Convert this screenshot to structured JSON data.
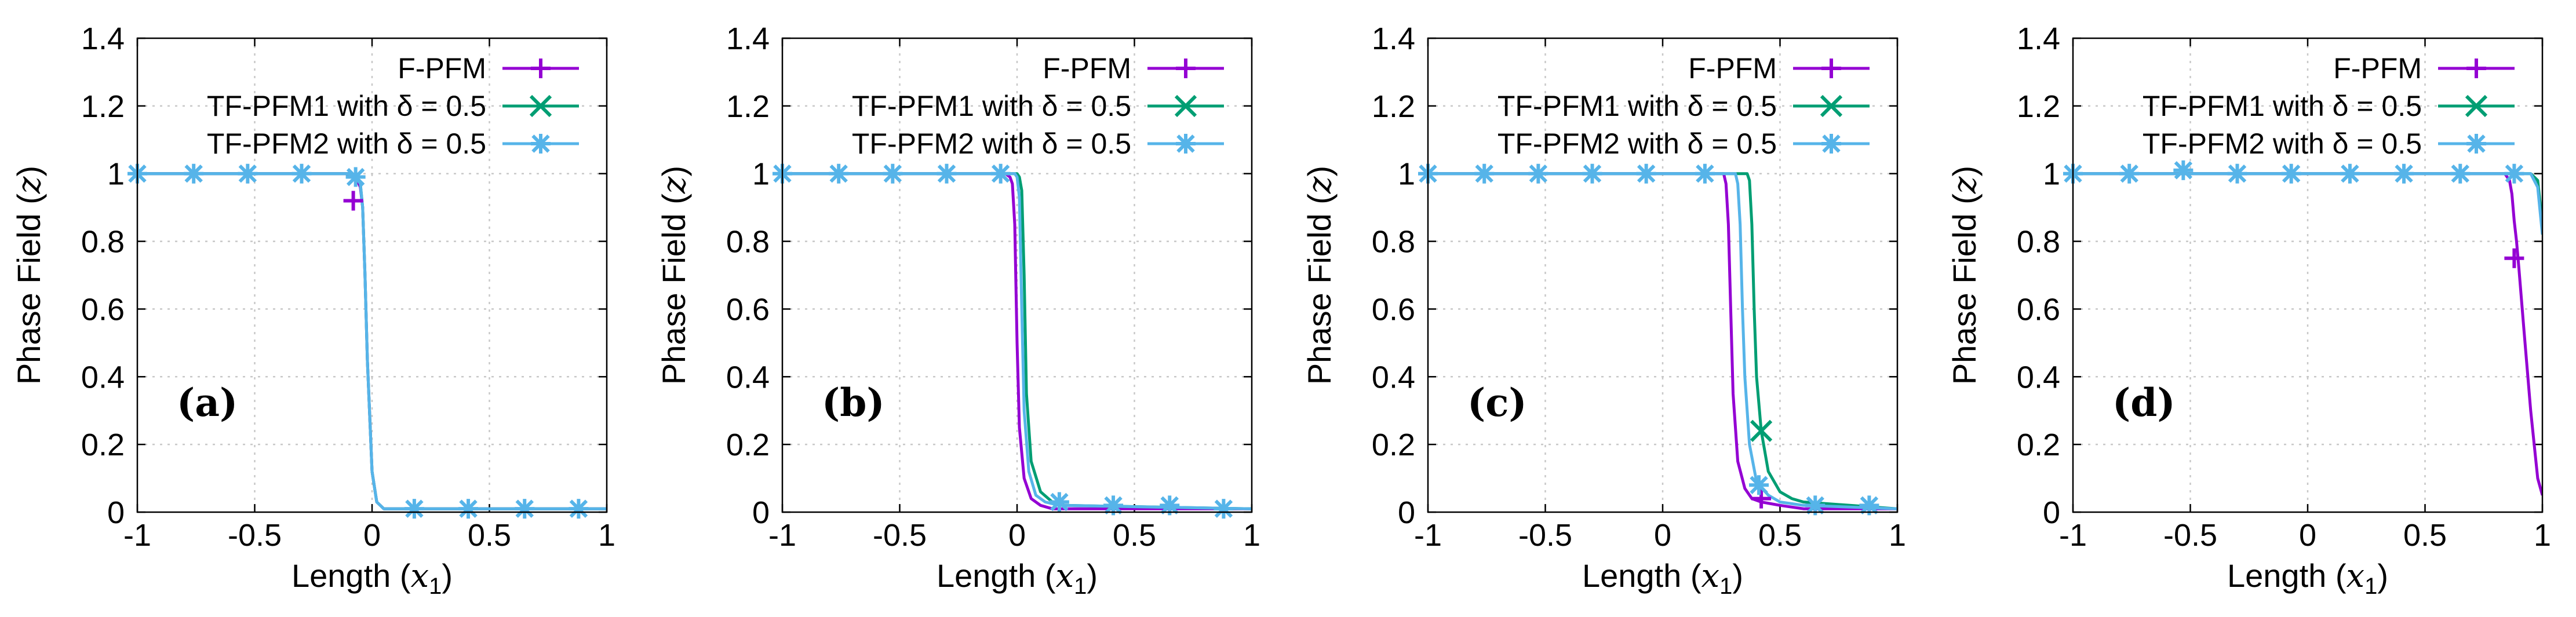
{
  "chart_data": [
    {
      "type": "line",
      "panel_label": "(a)",
      "xlabel_text": "Length (",
      "xlabel_var": "x",
      "xlabel_sub": "1",
      "xlabel_close": ")",
      "ylabel_text": "Phase Field (",
      "ylabel_var": "z",
      "ylabel_close": ")",
      "xlim": [
        -1,
        1
      ],
      "ylim": [
        0,
        1.4
      ],
      "xticks": [
        "-1",
        "-0.5",
        "0",
        "0.5",
        "1"
      ],
      "yticks": [
        "0",
        "0.2",
        "0.4",
        "0.6",
        "0.8",
        "1",
        "1.2",
        "1.4"
      ],
      "grid": true,
      "legend_position": "top-right",
      "series": [
        {
          "name": "F-PFM",
          "color": "#9400d3",
          "marker": "plus",
          "x": [
            -1,
            -0.5,
            -0.1,
            -0.07,
            -0.05,
            -0.04,
            -0.03,
            -0.02,
            0.0,
            0.02,
            0.05,
            1
          ],
          "y": [
            1.0,
            1.0,
            1.0,
            0.99,
            0.96,
            0.9,
            0.7,
            0.45,
            0.12,
            0.03,
            0.01,
            0.01
          ],
          "marker_x": [
            -0.08
          ],
          "marker_y": [
            0.92
          ]
        },
        {
          "name": "TF-PFM1 with δ = 0.5",
          "color": "#009e73",
          "marker": "x",
          "x": [
            -1,
            -0.5,
            -0.1,
            -0.07,
            -0.05,
            -0.04,
            -0.03,
            -0.02,
            0.0,
            0.02,
            0.05,
            1
          ],
          "y": [
            1.0,
            1.0,
            1.0,
            0.99,
            0.97,
            0.9,
            0.7,
            0.45,
            0.12,
            0.03,
            0.01,
            0.01
          ],
          "marker_x": [],
          "marker_y": []
        },
        {
          "name": "TF-PFM2 with δ = 0.5",
          "color": "#56b4e9",
          "marker": "star",
          "x": [
            -1,
            -0.5,
            -0.1,
            -0.07,
            -0.05,
            -0.04,
            -0.03,
            -0.02,
            0.0,
            0.02,
            0.05,
            1
          ],
          "y": [
            1.0,
            1.0,
            1.0,
            0.99,
            0.97,
            0.9,
            0.7,
            0.45,
            0.12,
            0.03,
            0.01,
            0.01
          ],
          "marker_x": [
            -1.0,
            -0.76,
            -0.53,
            -0.3,
            -0.07,
            0.18,
            0.41,
            0.65,
            0.88
          ],
          "marker_y": [
            1.0,
            1.0,
            1.0,
            1.0,
            0.99,
            0.01,
            0.01,
            0.01,
            0.01
          ]
        }
      ]
    },
    {
      "type": "line",
      "panel_label": "(b)",
      "xlabel_text": "Length (",
      "xlabel_var": "x",
      "xlabel_sub": "1",
      "xlabel_close": ")",
      "ylabel_text": "Phase Field (",
      "ylabel_var": "z",
      "ylabel_close": ")",
      "xlim": [
        -1,
        1
      ],
      "ylim": [
        0,
        1.4
      ],
      "xticks": [
        "-1",
        "-0.5",
        "0",
        "0.5",
        "1"
      ],
      "yticks": [
        "0",
        "0.2",
        "0.4",
        "0.6",
        "0.8",
        "1",
        "1.2",
        "1.4"
      ],
      "grid": true,
      "legend_position": "top-right",
      "series": [
        {
          "name": "F-PFM",
          "color": "#9400d3",
          "marker": "plus",
          "x": [
            -1,
            -0.3,
            -0.05,
            -0.03,
            -0.02,
            -0.01,
            0.0,
            0.01,
            0.03,
            0.06,
            0.1,
            0.15,
            1
          ],
          "y": [
            1.0,
            1.0,
            1.0,
            0.99,
            0.97,
            0.85,
            0.5,
            0.25,
            0.1,
            0.04,
            0.02,
            0.01,
            0.01
          ],
          "marker_x": [],
          "marker_y": []
        },
        {
          "name": "TF-PFM1 with δ = 0.5",
          "color": "#009e73",
          "marker": "x",
          "x": [
            -1,
            -0.3,
            0.0,
            0.01,
            0.02,
            0.03,
            0.04,
            0.06,
            0.1,
            0.15,
            0.2,
            1
          ],
          "y": [
            1.0,
            1.0,
            1.0,
            0.99,
            0.95,
            0.7,
            0.35,
            0.15,
            0.06,
            0.03,
            0.02,
            0.01
          ],
          "marker_x": [],
          "marker_y": []
        },
        {
          "name": "TF-PFM2 with δ = 0.5",
          "color": "#56b4e9",
          "marker": "star",
          "x": [
            -1,
            -0.3,
            -0.01,
            0.0,
            0.01,
            0.02,
            0.03,
            0.05,
            0.08,
            0.12,
            0.18,
            1
          ],
          "y": [
            1.0,
            1.0,
            1.0,
            0.99,
            0.93,
            0.6,
            0.3,
            0.12,
            0.05,
            0.03,
            0.02,
            0.01
          ],
          "marker_x": [
            -1.0,
            -0.76,
            -0.53,
            -0.3,
            -0.07,
            0.18,
            0.41,
            0.65,
            0.88
          ],
          "marker_y": [
            1.0,
            1.0,
            1.0,
            1.0,
            1.0,
            0.03,
            0.02,
            0.02,
            0.01
          ]
        }
      ]
    },
    {
      "type": "line",
      "panel_label": "(c)",
      "xlabel_text": "Length (",
      "xlabel_var": "x",
      "xlabel_sub": "1",
      "xlabel_close": ")",
      "ylabel_text": "Phase Field (",
      "ylabel_var": "z",
      "ylabel_close": ")",
      "xlim": [
        -1,
        1
      ],
      "ylim": [
        0,
        1.4
      ],
      "xticks": [
        "-1",
        "-0.5",
        "0",
        "0.5",
        "1"
      ],
      "yticks": [
        "0",
        "0.2",
        "0.4",
        "0.6",
        "0.8",
        "1",
        "1.2",
        "1.4"
      ],
      "grid": true,
      "legend_position": "top-right",
      "series": [
        {
          "name": "F-PFM",
          "color": "#9400d3",
          "marker": "plus",
          "x": [
            -1,
            0.22,
            0.26,
            0.27,
            0.28,
            0.29,
            0.3,
            0.32,
            0.35,
            0.38,
            0.42,
            0.5,
            0.6,
            1
          ],
          "y": [
            1.0,
            1.0,
            1.0,
            0.97,
            0.85,
            0.6,
            0.35,
            0.15,
            0.07,
            0.04,
            0.03,
            0.02,
            0.01,
            0.01
          ],
          "marker_x": [
            0.42
          ],
          "marker_y": [
            0.04
          ]
        },
        {
          "name": "TF-PFM1 with δ = 0.5",
          "color": "#009e73",
          "marker": "x",
          "x": [
            -1,
            0.3,
            0.36,
            0.37,
            0.38,
            0.39,
            0.4,
            0.42,
            0.45,
            0.5,
            0.55,
            0.6,
            1
          ],
          "y": [
            1.0,
            1.0,
            1.0,
            0.98,
            0.85,
            0.6,
            0.4,
            0.24,
            0.12,
            0.06,
            0.04,
            0.03,
            0.01
          ],
          "marker_x": [
            0.42
          ],
          "marker_y": [
            0.24
          ]
        },
        {
          "name": "TF-PFM2 with δ = 0.5",
          "color": "#56b4e9",
          "marker": "star",
          "x": [
            -1,
            0.25,
            0.31,
            0.32,
            0.33,
            0.34,
            0.35,
            0.37,
            0.4,
            0.45,
            0.5,
            0.6,
            1
          ],
          "y": [
            1.0,
            1.0,
            1.0,
            0.97,
            0.85,
            0.6,
            0.4,
            0.2,
            0.09,
            0.05,
            0.03,
            0.02,
            0.01
          ],
          "marker_x": [
            -1.0,
            -0.76,
            -0.53,
            -0.3,
            -0.07,
            0.18,
            0.41,
            0.65,
            0.88
          ],
          "marker_y": [
            1.0,
            1.0,
            1.0,
            1.0,
            1.0,
            1.0,
            0.08,
            0.02,
            0.02
          ]
        }
      ]
    },
    {
      "type": "line",
      "panel_label": "(d)",
      "xlabel_text": "Length (",
      "xlabel_var": "x",
      "xlabel_sub": "1",
      "xlabel_close": ")",
      "ylabel_text": "Phase Field (",
      "ylabel_var": "z",
      "ylabel_close": ")",
      "xlim": [
        -1,
        1
      ],
      "ylim": [
        0,
        1.4
      ],
      "xticks": [
        "-1",
        "-0.5",
        "0",
        "0.5",
        "1"
      ],
      "yticks": [
        "0",
        "0.2",
        "0.4",
        "0.6",
        "0.8",
        "1",
        "1.2",
        "1.4"
      ],
      "grid": true,
      "legend_position": "top-right",
      "series": [
        {
          "name": "F-PFM",
          "color": "#9400d3",
          "marker": "plus",
          "x": [
            -1,
            0.84,
            0.86,
            0.87,
            0.88,
            0.89,
            0.9,
            0.92,
            0.95,
            0.98,
            1.0
          ],
          "y": [
            1.0,
            1.0,
            0.98,
            0.94,
            0.86,
            0.8,
            0.72,
            0.55,
            0.3,
            0.1,
            0.05
          ],
          "marker_x": [
            0.88
          ],
          "marker_y": [
            0.75
          ]
        },
        {
          "name": "TF-PFM1 with δ = 0.5",
          "color": "#009e73",
          "marker": "x",
          "x": [
            -1,
            0.95,
            0.98,
            1.0
          ],
          "y": [
            1.0,
            1.0,
            0.98,
            0.85
          ],
          "marker_x": [],
          "marker_y": []
        },
        {
          "name": "TF-PFM2 with δ = 0.5",
          "color": "#56b4e9",
          "marker": "star",
          "x": [
            -1,
            0.95,
            0.98,
            1.0
          ],
          "y": [
            1.0,
            1.0,
            0.96,
            0.82
          ],
          "marker_x": [
            -1.0,
            -0.76,
            -0.53,
            -0.3,
            -0.07,
            0.18,
            0.41,
            0.65,
            0.88
          ],
          "marker_y": [
            1.0,
            1.0,
            1.01,
            1.0,
            1.0,
            1.0,
            1.0,
            1.0,
            1.0
          ]
        }
      ]
    }
  ]
}
